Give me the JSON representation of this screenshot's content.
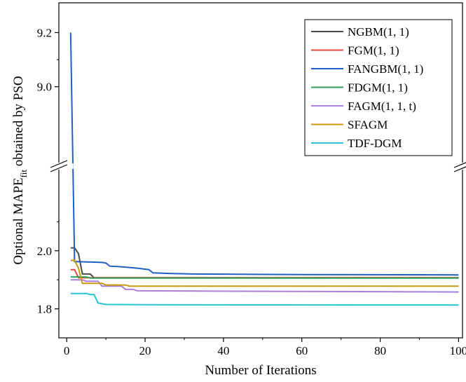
{
  "chart_data": {
    "type": "line",
    "xlabel": "Number of Iterations",
    "ylabel_main": "Optional MAPE",
    "ylabel_sub": "fit",
    "ylabel_rest": " obtained by PSO",
    "xlim": [
      -2,
      101
    ],
    "xticks": [
      0,
      20,
      40,
      60,
      80,
      100
    ],
    "y_segments": {
      "upper": {
        "ylim": [
          8.73,
          9.31
        ],
        "ticks": [
          9.0,
          9.2
        ],
        "tick_labels": [
          "9.0",
          "9.2"
        ]
      },
      "lower": {
        "ylim": [
          1.7,
          2.27
        ],
        "ticks": [
          1.8,
          2.0
        ],
        "tick_labels": [
          "1.8",
          "2.0"
        ]
      }
    },
    "axis_break": true,
    "legend_position": "top-right",
    "series": [
      {
        "name": "NGBM(1, 1)",
        "color": "#4a4a4a",
        "points": [
          [
            1,
            2.01
          ],
          [
            2,
            2.01
          ],
          [
            3,
            1.99
          ],
          [
            4,
            1.92
          ],
          [
            6,
            1.92
          ],
          [
            7,
            1.907
          ],
          [
            100,
            1.907
          ]
        ]
      },
      {
        "name": "FGM(1, 1)",
        "color": "#e8453c",
        "points": [
          [
            1,
            1.935
          ],
          [
            2,
            1.935
          ],
          [
            3,
            1.907
          ],
          [
            100,
            1.907
          ]
        ]
      },
      {
        "name": "FANGBM(1, 1)",
        "color": "#1f5fc7",
        "points": [
          [
            1,
            9.2
          ],
          [
            2,
            1.963
          ],
          [
            4,
            1.962
          ],
          [
            9,
            1.96
          ],
          [
            10,
            1.958
          ],
          [
            11,
            1.947
          ],
          [
            14,
            1.945
          ],
          [
            18,
            1.94
          ],
          [
            21,
            1.935
          ],
          [
            22,
            1.924
          ],
          [
            26,
            1.922
          ],
          [
            32,
            1.92
          ],
          [
            60,
            1.918
          ],
          [
            100,
            1.917
          ]
        ]
      },
      {
        "name": "FDGM(1, 1)",
        "color": "#2ea35a",
        "points": [
          [
            1,
            1.91
          ],
          [
            5,
            1.91
          ],
          [
            6,
            1.906
          ],
          [
            100,
            1.906
          ]
        ]
      },
      {
        "name": "FAGM(1, 1, t)",
        "color": "#a97fd8",
        "points": [
          [
            1,
            1.9
          ],
          [
            4,
            1.9
          ],
          [
            5,
            1.895
          ],
          [
            8,
            1.895
          ],
          [
            9,
            1.878
          ],
          [
            14,
            1.878
          ],
          [
            15,
            1.867
          ],
          [
            17,
            1.867
          ],
          [
            18,
            1.862
          ],
          [
            100,
            1.858
          ]
        ]
      },
      {
        "name": "SFAGM",
        "color": "#c99a10",
        "points": [
          [
            1,
            1.967
          ],
          [
            2,
            1.967
          ],
          [
            3,
            1.94
          ],
          [
            4,
            1.888
          ],
          [
            9,
            1.888
          ],
          [
            10,
            1.882
          ],
          [
            15,
            1.882
          ],
          [
            16,
            1.878
          ],
          [
            100,
            1.878
          ]
        ]
      },
      {
        "name": "TDF-DGM",
        "color": "#26c4d6",
        "points": [
          [
            1,
            1.853
          ],
          [
            5,
            1.853
          ],
          [
            6,
            1.849
          ],
          [
            7,
            1.849
          ],
          [
            8,
            1.82
          ],
          [
            10,
            1.815
          ],
          [
            20,
            1.814
          ],
          [
            100,
            1.813
          ]
        ]
      }
    ]
  }
}
